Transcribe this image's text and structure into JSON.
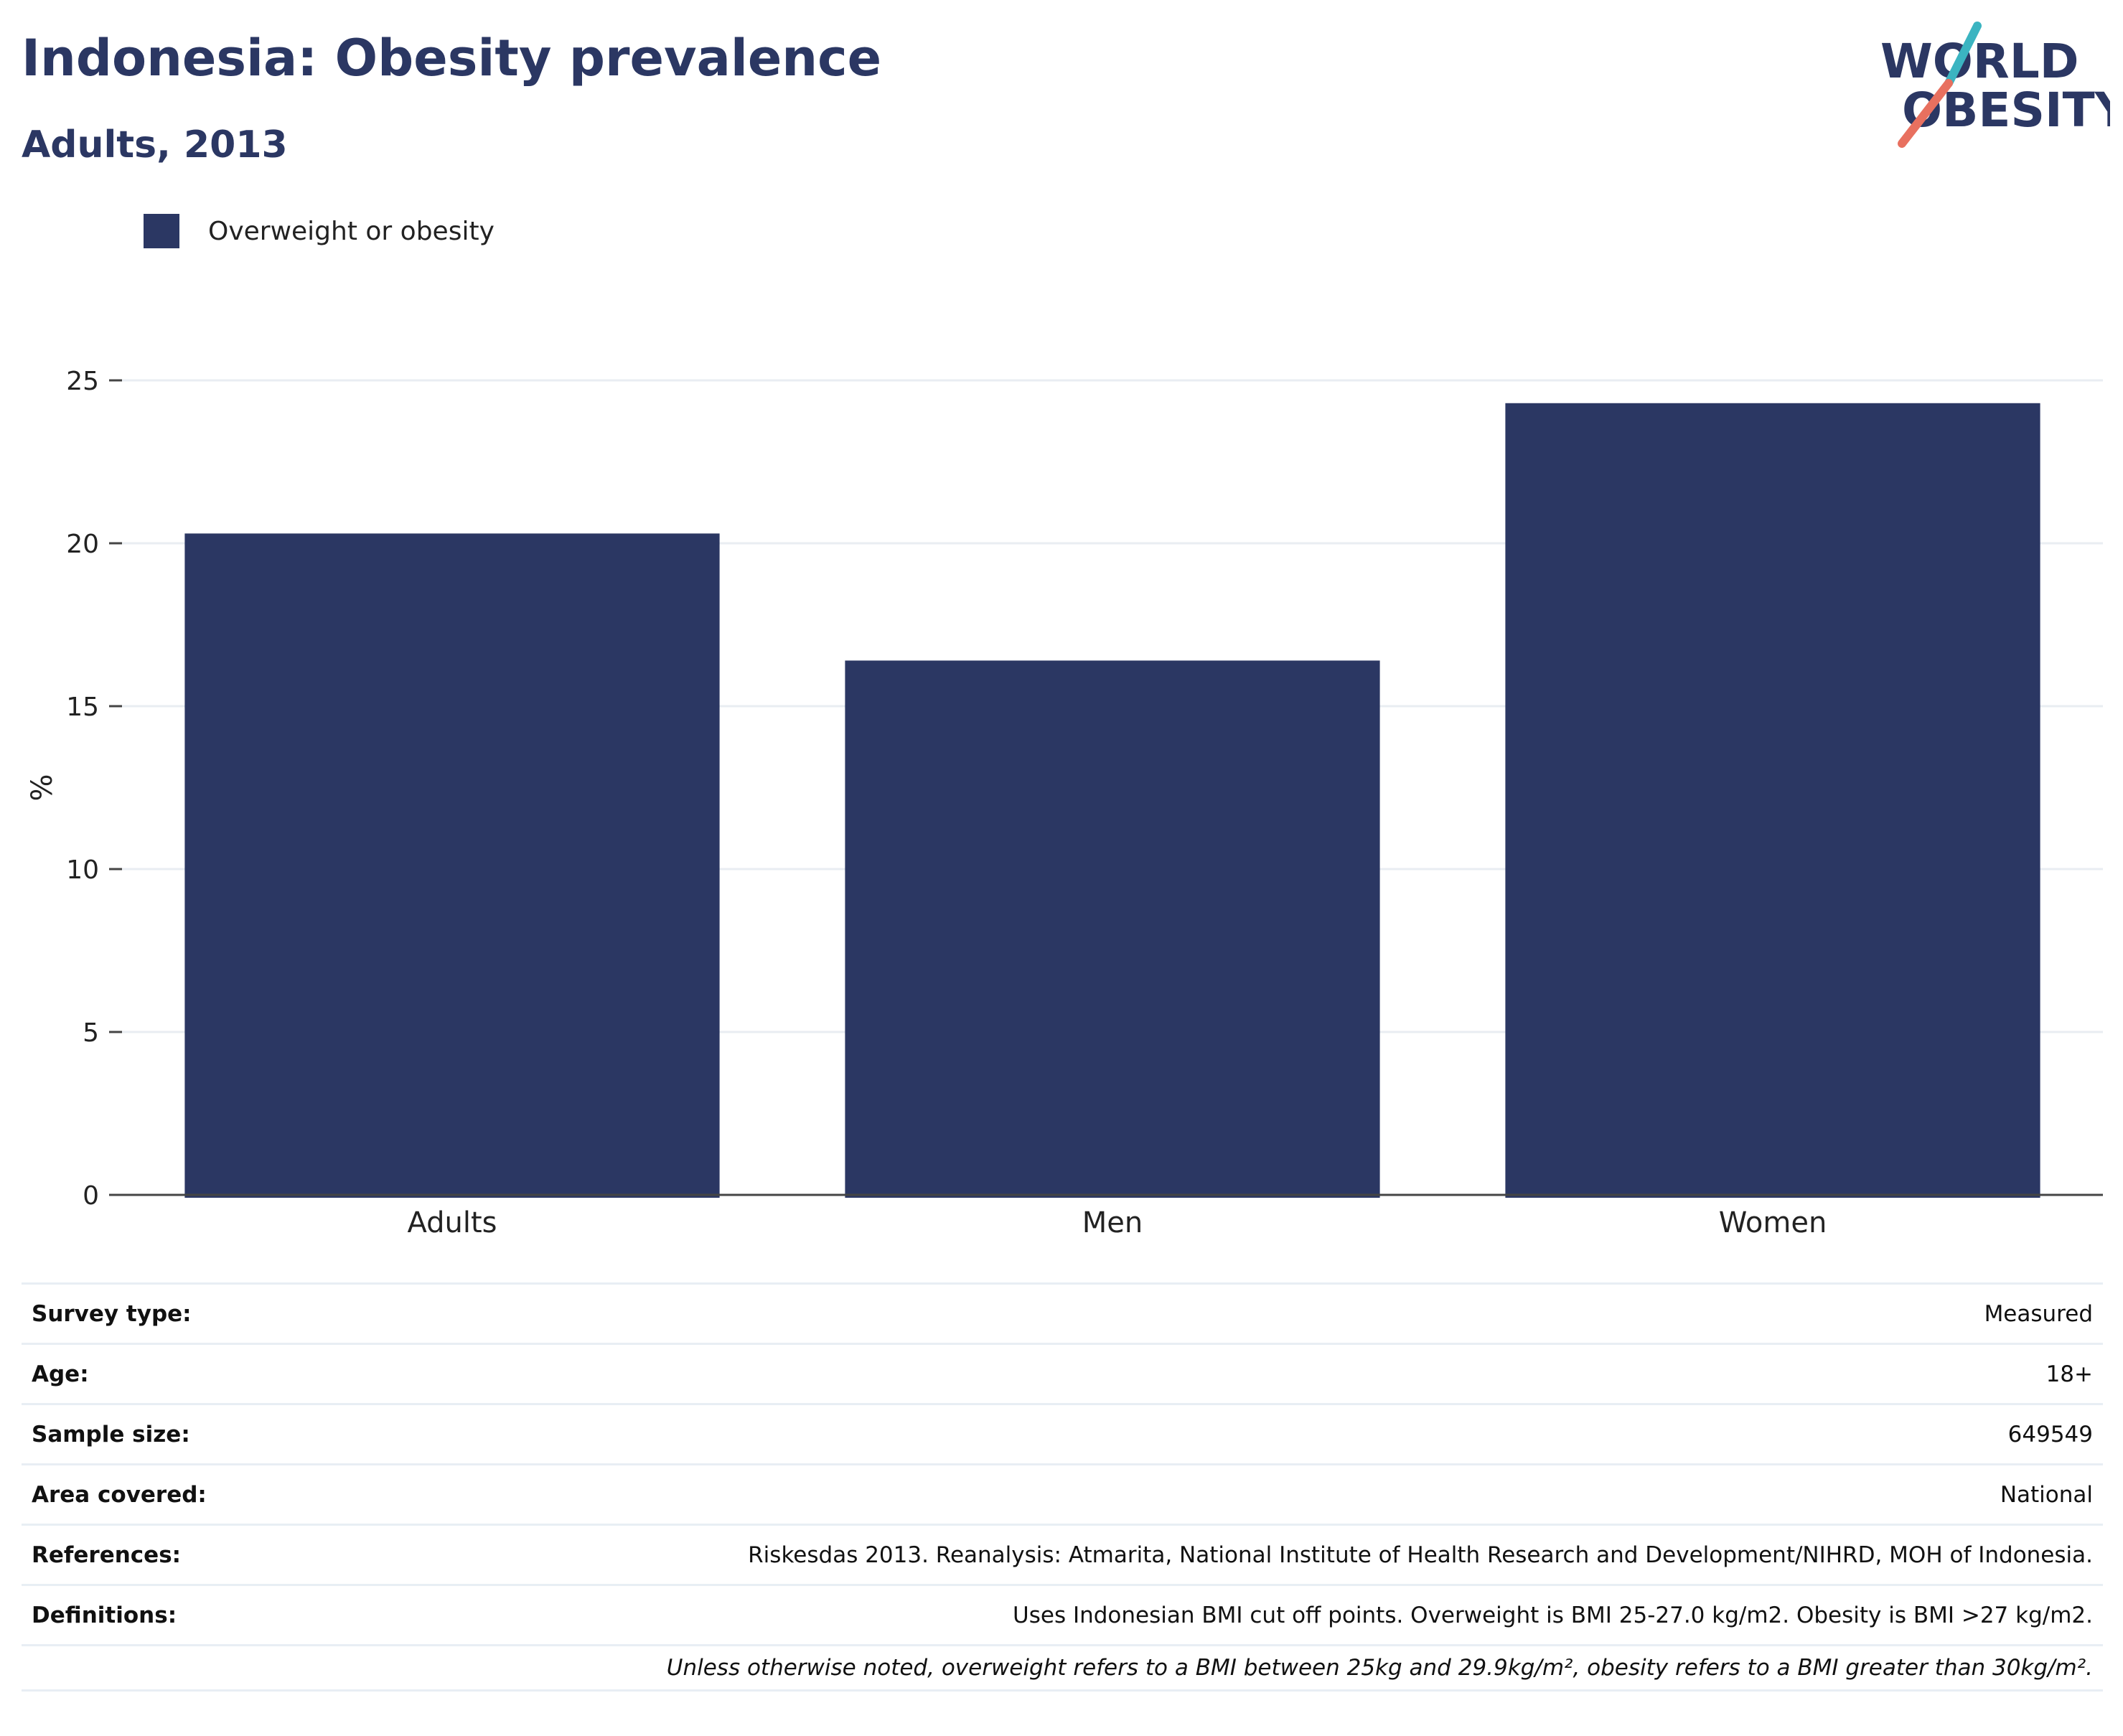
{
  "header": {
    "title": "Indonesia: Obesity prevalence",
    "subtitle": "Adults, 2013"
  },
  "logo": {
    "line1": "WORLD",
    "line2": "OBESITY",
    "colors": {
      "text": "#2b3763",
      "slash_top": "#3bb4c1",
      "slash_bottom": "#e8705f"
    }
  },
  "colors": {
    "bar": "#2b3763",
    "grid": "#e9edf2",
    "axis": "#444444",
    "tick_text": "#222222"
  },
  "chart_data": {
    "type": "bar",
    "categories": [
      "Adults",
      "Men",
      "Women"
    ],
    "series": [
      {
        "name": "Overweight or obesity",
        "values": [
          20.3,
          16.4,
          24.3
        ]
      }
    ],
    "ylabel": "%",
    "ylim": [
      0,
      25
    ],
    "yticks": [
      0,
      5,
      10,
      15,
      20,
      25
    ],
    "grid": true,
    "legend_position": "top-left"
  },
  "info": [
    {
      "label": "Survey type:",
      "value": "Measured"
    },
    {
      "label": "Age:",
      "value": "18+"
    },
    {
      "label": "Sample size:",
      "value": "649549"
    },
    {
      "label": "Area covered:",
      "value": "National"
    },
    {
      "label": "References:",
      "value": "Riskesdas 2013. Reanalysis: Atmarita, National Institute of Health Research and Development/NIHRD, MOH of Indonesia."
    },
    {
      "label": "Definitions:",
      "value": "Uses Indonesian BMI cut off points. Overweight is BMI 25-27.0 kg/m2. Obesity is BMI >27 kg/m2."
    }
  ],
  "footnote": "Unless otherwise noted, overweight refers to a BMI between 25kg and 29.9kg/m², obesity refers to a BMI greater than 30kg/m²."
}
